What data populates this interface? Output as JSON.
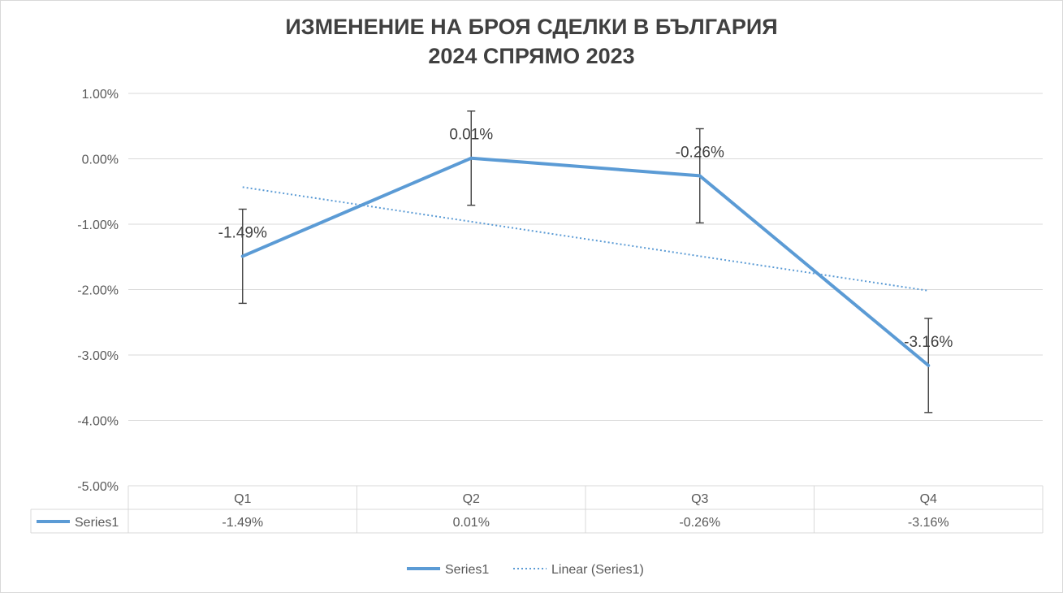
{
  "chart_data": {
    "type": "line",
    "title": [
      "ИЗМЕНЕНИЕ НА БРОЯ СДЕЛКИ В БЪЛГАРИЯ",
      "2024 СПРЯМО 2023"
    ],
    "categories": [
      "Q1",
      "Q2",
      "Q3",
      "Q4"
    ],
    "series": [
      {
        "name": "Series1",
        "values": [
          -1.49,
          0.01,
          -0.26,
          -3.16
        ],
        "labels": [
          "-1.49%",
          "0.01%",
          "-0.26%",
          "-3.16%"
        ],
        "color": "#5b9bd5",
        "error_bars": 0.72
      }
    ],
    "trendline": {
      "name": "Linear (Series1)",
      "type": "linear",
      "color": "#5b9bd5",
      "style": "dotted"
    },
    "y_ticks": [
      "1.00%",
      "0.00%",
      "-1.00%",
      "-2.00%",
      "-3.00%",
      "-4.00%",
      "-5.00%"
    ],
    "ylim": [
      -5,
      1
    ],
    "grid": true,
    "data_table": true,
    "legend": [
      "Series1",
      "Linear (Series1)"
    ],
    "legend_position": "bottom"
  }
}
